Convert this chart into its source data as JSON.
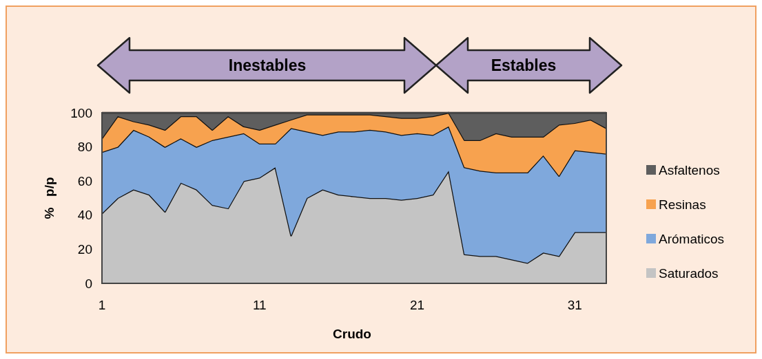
{
  "chart_data": {
    "type": "area",
    "stacked": true,
    "xlabel": "Crudo",
    "ylabel": "%   p/p",
    "x": [
      1,
      2,
      3,
      4,
      5,
      6,
      7,
      8,
      9,
      10,
      11,
      12,
      13,
      14,
      15,
      16,
      17,
      18,
      19,
      20,
      21,
      22,
      23,
      24,
      25,
      26,
      27,
      28,
      29,
      30,
      31,
      32,
      33
    ],
    "xlim": [
      1,
      33
    ],
    "xticks": [
      1,
      11,
      21,
      31
    ],
    "ylim": [
      0,
      100
    ],
    "yticks": [
      0,
      20,
      40,
      60,
      80,
      100
    ],
    "grid": false,
    "legend": "right",
    "annotations": [
      "Inestables",
      "Estables"
    ],
    "series": [
      {
        "name": "Saturados",
        "color": "#c4c4c4",
        "values": [
          41,
          50,
          55,
          52,
          42,
          59,
          55,
          46,
          44,
          60,
          62,
          68,
          28,
          50,
          55,
          52,
          51,
          50,
          50,
          49,
          50,
          52,
          66,
          17,
          16,
          16,
          14,
          12,
          18,
          16,
          30,
          30,
          30
        ]
      },
      {
        "name": "Arómaticos",
        "color": "#7fa8dc",
        "values": [
          36,
          30,
          35,
          34,
          38,
          26,
          25,
          38,
          42,
          28,
          20,
          14,
          63,
          39,
          32,
          37,
          38,
          40,
          39,
          38,
          38,
          35,
          26,
          51,
          50,
          49,
          51,
          53,
          57,
          47,
          48,
          47,
          46
        ]
      },
      {
        "name": "Resinas",
        "color": "#f7a24f",
        "values": [
          8,
          18,
          5,
          7,
          10,
          13,
          18,
          6,
          12,
          4,
          8,
          11,
          5,
          10,
          12,
          10,
          10,
          9,
          9,
          10,
          9,
          11,
          8,
          16,
          18,
          23,
          21,
          21,
          11,
          30,
          16,
          19,
          15
        ]
      },
      {
        "name": "Asfaltenos",
        "color": "#5e5e5e",
        "values": [
          15,
          2,
          5,
          7,
          10,
          2,
          2,
          10,
          2,
          8,
          10,
          7,
          4,
          1,
          1,
          1,
          1,
          1,
          2,
          3,
          3,
          2,
          0,
          16,
          16,
          12,
          14,
          14,
          14,
          7,
          6,
          4,
          9
        ]
      }
    ]
  }
}
